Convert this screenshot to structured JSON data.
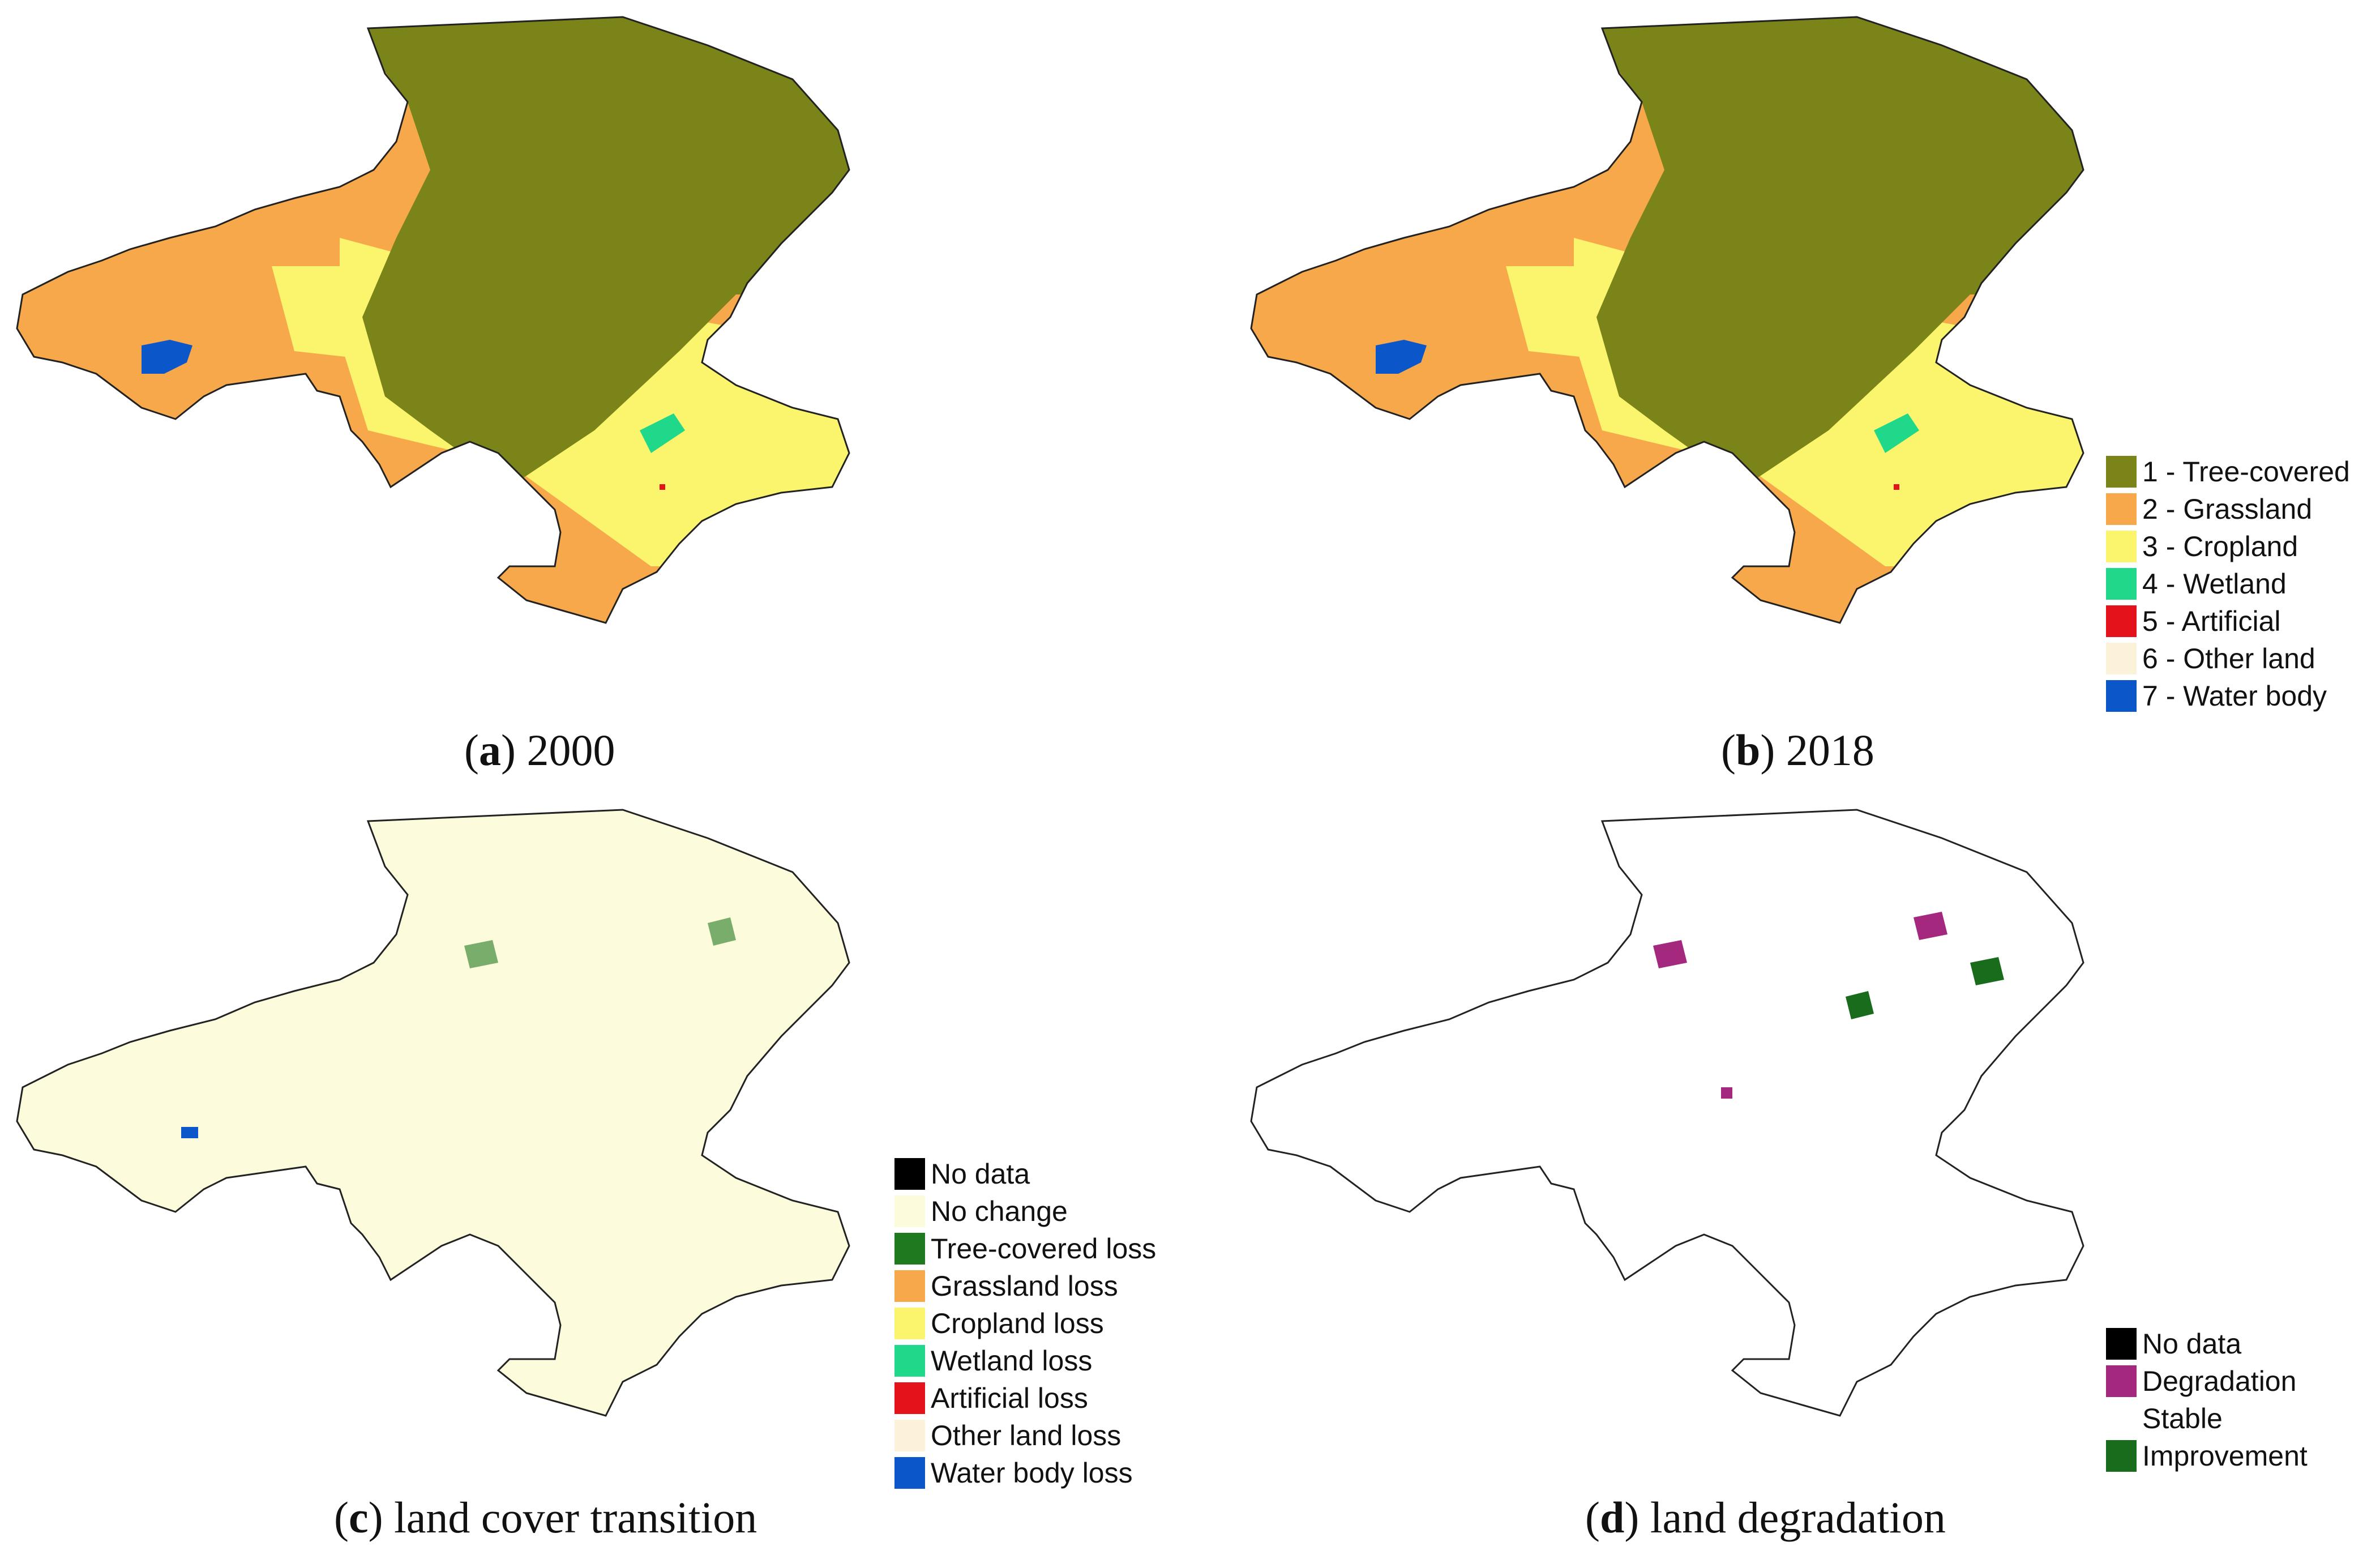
{
  "colors": {
    "tree": "#7a8418",
    "grass": "#f7a84a",
    "crop": "#fbf56e",
    "wetland": "#1fd88a",
    "artificial": "#e3121b",
    "other": "#fcf1d9",
    "water": "#0b56c9",
    "nochange": "#fcfbdb",
    "degradation": "#a3287e",
    "improvement": "#186c1c",
    "nodata": "#000000",
    "outline": "#555555"
  },
  "panels": [
    {
      "letter": "a",
      "caption": "2000"
    },
    {
      "letter": "b",
      "caption": "2018"
    },
    {
      "letter": "c",
      "caption": "land cover transition"
    },
    {
      "letter": "d",
      "caption": "land degradation"
    }
  ],
  "legend_landcover": [
    {
      "label": "1 - Tree-covered",
      "color": "#7a8418"
    },
    {
      "label": "2 - Grassland",
      "color": "#f7a84a"
    },
    {
      "label": "3 - Cropland",
      "color": "#fbf56e"
    },
    {
      "label": "4 - Wetland",
      "color": "#1fd88a"
    },
    {
      "label": "5 - Artificial",
      "color": "#e3121b"
    },
    {
      "label": "6 - Other land",
      "color": "#fcf1d9"
    },
    {
      "label": "7 - Water body",
      "color": "#0b56c9"
    }
  ],
  "legend_transition": [
    {
      "label": "No data",
      "color": "#000000"
    },
    {
      "label": "No change",
      "color": "#fcfbdb"
    },
    {
      "label": "Tree-covered loss",
      "color": "#1f7a1f"
    },
    {
      "label": "Grassland loss",
      "color": "#f7a84a"
    },
    {
      "label": "Cropland loss",
      "color": "#fbf56e"
    },
    {
      "label": "Wetland loss",
      "color": "#1fd88a"
    },
    {
      "label": "Artificial loss",
      "color": "#e3121b"
    },
    {
      "label": "Other land loss",
      "color": "#fcf1d9"
    },
    {
      "label": "Water body loss",
      "color": "#0b56c9"
    }
  ],
  "legend_degradation": [
    {
      "label": "No data",
      "color": "#000000"
    },
    {
      "label": "Degradation",
      "color": "#a3287e"
    },
    {
      "label": "Stable",
      "color": "#ffffff"
    },
    {
      "label": "Improvement",
      "color": "#186c1c"
    }
  ]
}
